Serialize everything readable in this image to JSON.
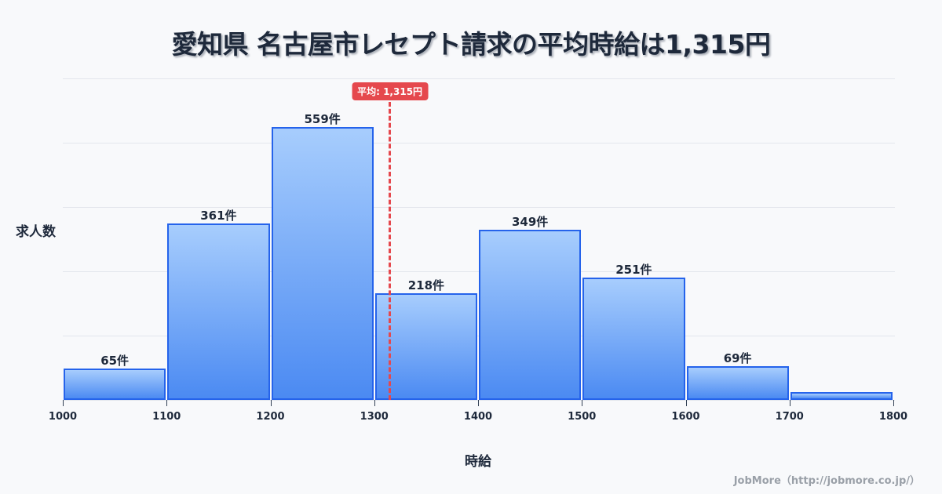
{
  "title": "愛知県 名古屋市レセプト請求の平均時給は1,315円",
  "average_badge": "平均: 1,315円",
  "y_axis_label": "求人数",
  "x_axis_label": "時給",
  "footer": "JobMore（http://jobmore.co.jp/）",
  "colors": {
    "bar_border": "#2563eb",
    "bar_top": "#a7cdfd",
    "bar_bottom": "#4b8af2",
    "average_line": "#e5484d",
    "text": "#1e293b",
    "background": "#f8f9fb"
  },
  "chart_data": {
    "type": "bar",
    "subtype": "histogram",
    "title": "愛知県 名古屋市レセプト請求の平均時給は1,315円",
    "xlabel": "時給",
    "ylabel": "求人数",
    "bin_edges": [
      1000,
      1100,
      1200,
      1300,
      1400,
      1500,
      1600,
      1700,
      1800
    ],
    "categories": [
      "1000-1100",
      "1100-1200",
      "1200-1300",
      "1300-1400",
      "1400-1500",
      "1500-1600",
      "1600-1700",
      "1700-1800"
    ],
    "values": [
      65,
      361,
      559,
      218,
      349,
      251,
      69,
      16
    ],
    "labels": [
      "65件",
      "361件",
      "559件",
      "218件",
      "349件",
      "251件",
      "69件",
      ""
    ],
    "x_ticks": [
      "1000",
      "1100",
      "1200",
      "1300",
      "1400",
      "1500",
      "1600",
      "1700",
      "1800"
    ],
    "xlim": [
      1000,
      1800
    ],
    "ylim": [
      0,
      658.6
    ],
    "grid": true,
    "y_tick_labels_shown": false,
    "annotations": [
      {
        "type": "vline",
        "x": 1315,
        "label": "平均: 1,315円",
        "style": "dashed",
        "color": "#e5484d"
      }
    ],
    "legend": null
  }
}
